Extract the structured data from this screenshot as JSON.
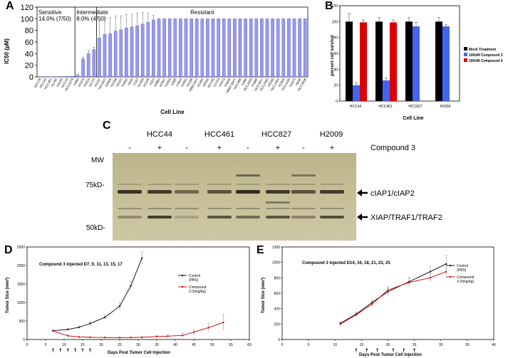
{
  "panels": {
    "A": "A",
    "B": "B",
    "C": "C",
    "D": "D",
    "E": "E"
  },
  "chart_data": [
    {
      "panel": "A",
      "type": "bar",
      "title": "",
      "xlabel": "Cell Line",
      "ylabel": "IC50 (µM)",
      "ylim": [
        0,
        120
      ],
      "yticks": [
        0,
        20,
        40,
        60,
        80,
        100,
        120
      ],
      "bar_color": "#9999ee",
      "regions": [
        {
          "name": "Sensitive",
          "percent": "14.0% (7/50)",
          "start": 0,
          "end": 6
        },
        {
          "name": "Intermediate",
          "percent": "8.0% (4/50)",
          "start": 7,
          "end": 10
        },
        {
          "name": "Resistant",
          "percent": "",
          "start": 11,
          "end": 49
        }
      ],
      "categories": [
        "HCC78",
        "HCC44",
        "HCC461",
        "H1792",
        "H1155",
        "HCC15",
        "HCC2279",
        "H460",
        "H1975",
        "H1819",
        "H1770",
        "H1437",
        "HCC827",
        "H2009",
        "H1299",
        "H2122",
        "H1650",
        "H520",
        "H157",
        "H1395",
        "H2126",
        "H322",
        "H2882",
        "H2347",
        "H1993",
        "H358",
        "Calu3",
        "H2052",
        "H1299",
        "HBEC3KT",
        "H1355",
        "H2030",
        "HCC95",
        "H1703",
        "H2073",
        "H1648",
        "HBEC30KT",
        "HCC366",
        "H460",
        "HCC1833",
        "H1666",
        "HCC4017",
        "HCC2450",
        "H3255",
        "HCC1359",
        "H2405",
        "HCC1195",
        "H1573",
        "H838",
        "HCC4006"
      ],
      "values": [
        0.1,
        0.2,
        0.3,
        0.4,
        0.6,
        0.9,
        1.2,
        3,
        31,
        40,
        47,
        67,
        73,
        74,
        79,
        81,
        84,
        86,
        88,
        91,
        94,
        98,
        100,
        100,
        100,
        100,
        100,
        100,
        100,
        100,
        100,
        100,
        100,
        100,
        100,
        100,
        100,
        100,
        100,
        100,
        100,
        100,
        100,
        100,
        100,
        100,
        100,
        100,
        100,
        100
      ],
      "errors": [
        0,
        0,
        0,
        0,
        0,
        0,
        0,
        2,
        3,
        6,
        4,
        30,
        30,
        28,
        26,
        24,
        23,
        22,
        22,
        20,
        16,
        8,
        0,
        0,
        0,
        0,
        0,
        0,
        0,
        0,
        0,
        0,
        0,
        0,
        0,
        0,
        0,
        0,
        0,
        0,
        0,
        0,
        0,
        0,
        0,
        0,
        0,
        0,
        0,
        0
      ]
    },
    {
      "panel": "B",
      "type": "bar",
      "title": "",
      "xlabel": "Cell Line",
      "ylabel": "percent cell survival",
      "ylim": [
        0,
        120
      ],
      "yticks": [
        0,
        20,
        40,
        60,
        80,
        100,
        120
      ],
      "categories": [
        "HCC44",
        "HCC461",
        "HCC827",
        "H2009"
      ],
      "legend_position": "right",
      "series": [
        {
          "name": "Mock Treatment",
          "color": "#000000",
          "values": [
            100,
            100,
            100,
            100
          ],
          "errors": [
            10,
            5,
            5,
            5
          ]
        },
        {
          "name": "100nM Compound 3",
          "color": "#4466ee",
          "values": [
            20,
            26,
            94,
            94
          ],
          "errors": [
            3,
            3,
            5,
            2
          ]
        },
        {
          "name": "100nM Compound 4",
          "color": "#dd0000",
          "values": [
            99,
            99,
            null,
            null
          ],
          "errors": [
            3,
            3,
            0,
            0
          ]
        }
      ]
    },
    {
      "panel": "D",
      "type": "line",
      "title": "Compound 3 injected D7, 9, 11, 13, 15, 17",
      "xlabel": "Days Post Tumor Cell Injection",
      "ylabel": "Tumor Size (mm³)",
      "xlim": [
        0,
        60
      ],
      "ylim": [
        0,
        2500
      ],
      "xticks": [
        0,
        5,
        10,
        15,
        20,
        25,
        30,
        35,
        40,
        45,
        50,
        55,
        60
      ],
      "yticks": [
        0,
        500,
        1000,
        1500,
        2000,
        2500
      ],
      "injection_days": [
        7,
        9,
        11,
        13,
        15,
        17
      ],
      "series": [
        {
          "name": "Control\n(PBS)",
          "color": "#000000",
          "x": [
            7,
            11,
            14,
            17,
            21,
            25,
            28,
            31
          ],
          "y": [
            240,
            270,
            330,
            430,
            600,
            900,
            1450,
            2200
          ],
          "err": [
            20,
            30,
            40,
            50,
            70,
            100,
            120,
            180
          ]
        },
        {
          "name": "Compound\n3 (5mg/kg)",
          "color": "#cc0000",
          "x": [
            7,
            11,
            14,
            17,
            21,
            25,
            28,
            31,
            35,
            38,
            42,
            45,
            49,
            53
          ],
          "y": [
            230,
            100,
            70,
            60,
            55,
            50,
            55,
            60,
            80,
            90,
            110,
            200,
            320,
            460
          ],
          "err": [
            20,
            20,
            15,
            10,
            10,
            10,
            10,
            15,
            20,
            30,
            50,
            80,
            120,
            220
          ]
        }
      ]
    },
    {
      "panel": "E",
      "type": "line",
      "title": "Compound 3 injected D14, 16, 18, 21, 23, 25",
      "xlabel": "Days Post Tumor Cell Injection",
      "ylabel": "Tumor Size (mm³)",
      "xlim": [
        0,
        40
      ],
      "ylim": [
        0,
        1200
      ],
      "xticks": [
        0,
        5,
        10,
        15,
        20,
        25,
        30,
        35,
        40
      ],
      "yticks": [
        0,
        200,
        400,
        600,
        800,
        1000,
        1200
      ],
      "injection_days": [
        14,
        16,
        18,
        21,
        23,
        25
      ],
      "series": [
        {
          "name": "Control\n(PBS)",
          "color": "#000000",
          "x": [
            11,
            14,
            17,
            20,
            24,
            28,
            31
          ],
          "y": [
            210,
            330,
            480,
            620,
            750,
            880,
            980
          ],
          "err": [
            20,
            25,
            35,
            50,
            60,
            70,
            110
          ]
        },
        {
          "name": "Compound\n3 (5mg/kg)",
          "color": "#cc0000",
          "x": [
            11,
            14,
            17,
            20,
            24,
            28,
            31
          ],
          "y": [
            200,
            320,
            460,
            640,
            740,
            800,
            880
          ],
          "err": [
            20,
            25,
            35,
            45,
            50,
            55,
            50
          ]
        }
      ]
    }
  ],
  "blot": {
    "mw_label": "MW",
    "lane_groups": [
      "HCC44",
      "HCC461",
      "HCC827",
      "H2009"
    ],
    "treatment_signs": [
      "-",
      "+",
      "-",
      "+",
      "-",
      "+",
      "-",
      "+"
    ],
    "treatment_label": "Compound 3",
    "markers": [
      "75kD-",
      "50kD-"
    ],
    "band_labels": [
      "cIAP1/cIAP2",
      "XIAP/TRAF1/TRAF2"
    ]
  }
}
